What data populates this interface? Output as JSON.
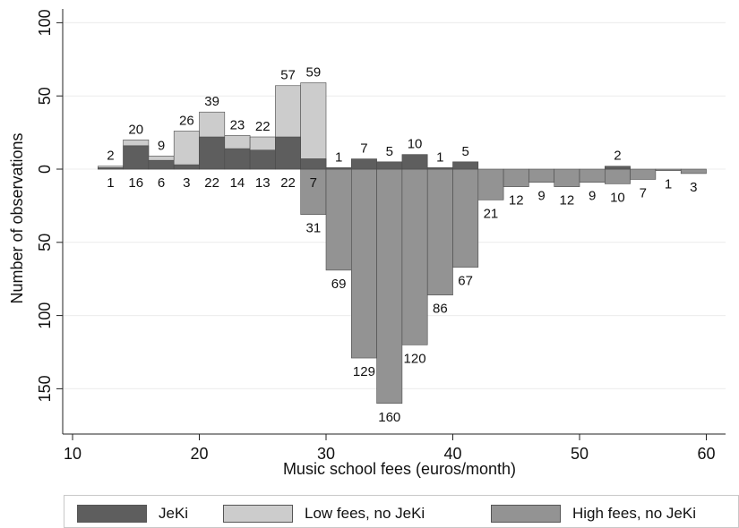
{
  "chart_data": {
    "type": "bar",
    "xlabel": "Music school fees (euros/month)",
    "ylabel": "Number of observations",
    "xlim": [
      10,
      61
    ],
    "ylim": [
      -160,
      100
    ],
    "x_ticks": [
      10,
      20,
      30,
      40,
      50,
      60
    ],
    "y_ticks": [
      {
        "value": 100,
        "label": "100"
      },
      {
        "value": 50,
        "label": "50"
      },
      {
        "value": 0,
        "label": "0"
      },
      {
        "value": -50,
        "label": "50"
      },
      {
        "value": -100,
        "label": "100"
      },
      {
        "value": -150,
        "label": "150"
      }
    ],
    "bin_width": 2,
    "grid": true,
    "legend_position": "bottom",
    "colors": {
      "jeki": "#5e5e5e",
      "low": "#cccccc",
      "high": "#939393"
    },
    "bins_above": [
      {
        "x0": 12,
        "jeki": 1,
        "low": 2,
        "jeki_label": "1",
        "low_label": "2"
      },
      {
        "x0": 14,
        "jeki": 16,
        "low": 20,
        "jeki_label": "16",
        "low_label": "20"
      },
      {
        "x0": 16,
        "jeki": 6,
        "low": 9,
        "jeki_label": "6",
        "low_label": "9"
      },
      {
        "x0": 18,
        "jeki": 3,
        "low": 26,
        "jeki_label": "3",
        "low_label": "26"
      },
      {
        "x0": 20,
        "jeki": 22,
        "low": 39,
        "jeki_label": "22",
        "low_label": "39"
      },
      {
        "x0": 22,
        "jeki": 14,
        "low": 23,
        "jeki_label": "14",
        "low_label": "23"
      },
      {
        "x0": 24,
        "jeki": 13,
        "low": 22,
        "jeki_label": "13",
        "low_label": "22"
      },
      {
        "x0": 26,
        "jeki": 22,
        "low": 57,
        "jeki_label": "22",
        "low_label": "57"
      },
      {
        "x0": 28,
        "jeki": 7,
        "low": 59,
        "jeki_label": "7",
        "low_label": "59"
      }
    ],
    "bins_mixed": [
      {
        "x0": 28,
        "high": 31,
        "jeki": 7,
        "high_label": "31",
        "jeki_label": ""
      },
      {
        "x0": 30,
        "high": 69,
        "jeki": 1,
        "high_label": "69",
        "jeki_label": "1"
      },
      {
        "x0": 32,
        "high": 129,
        "jeki": 7,
        "high_label": "129",
        "jeki_label": "7"
      },
      {
        "x0": 34,
        "high": 160,
        "jeki": 5,
        "high_label": "160",
        "jeki_label": "5"
      },
      {
        "x0": 36,
        "high": 120,
        "jeki": 10,
        "high_label": "120",
        "jeki_label": "10"
      },
      {
        "x0": 38,
        "high": 86,
        "jeki": 1,
        "high_label": "86",
        "jeki_label": "1"
      },
      {
        "x0": 40,
        "high": 67,
        "jeki": 5,
        "high_label": "67",
        "jeki_label": "5"
      },
      {
        "x0": 42,
        "high": 21,
        "jeki": 0,
        "high_label": "21",
        "jeki_label": ""
      },
      {
        "x0": 44,
        "high": 12,
        "jeki": 0,
        "high_label": "12",
        "jeki_label": ""
      },
      {
        "x0": 46,
        "high": 9,
        "jeki": 0,
        "high_label": "9",
        "jeki_label": ""
      },
      {
        "x0": 48,
        "high": 12,
        "jeki": 0,
        "high_label": "12",
        "jeki_label": ""
      },
      {
        "x0": 50,
        "high": 9,
        "jeki": 0,
        "high_label": "9",
        "jeki_label": ""
      },
      {
        "x0": 52,
        "high": 10,
        "jeki": 2,
        "high_label": "10",
        "jeki_label": "2"
      },
      {
        "x0": 54,
        "high": 7,
        "jeki": 0,
        "high_label": "7",
        "jeki_label": ""
      },
      {
        "x0": 56,
        "high": 1,
        "jeki": 0,
        "high_label": "1",
        "jeki_label": ""
      },
      {
        "x0": 58,
        "high": 3,
        "jeki": 0,
        "high_label": "3",
        "jeki_label": ""
      }
    ]
  },
  "legend": {
    "jeki": "JeKi",
    "low": "Low fees, no JeKi",
    "high": "High fees, no JeKi"
  }
}
